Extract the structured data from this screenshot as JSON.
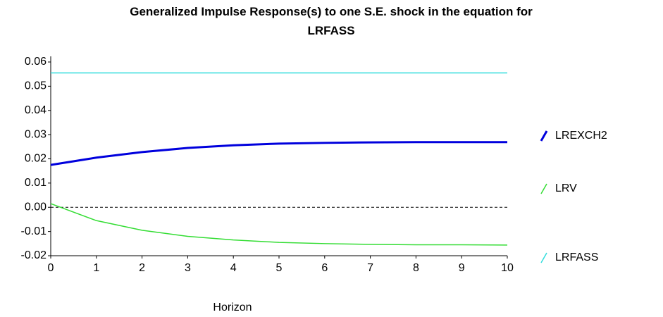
{
  "chart_data": {
    "type": "line",
    "title": "Generalized Impulse Response(s) to one S.E. shock in the equation for LRFASS",
    "x_label": "Horizon",
    "x": [
      0,
      1,
      2,
      3,
      4,
      5,
      6,
      7,
      8,
      9,
      10
    ],
    "series": [
      {
        "name": "LREXCH2",
        "color": "#0000dd",
        "values": [
          0.0175,
          0.0205,
          0.0228,
          0.0245,
          0.0256,
          0.0263,
          0.0266,
          0.0268,
          0.0269,
          0.0269,
          0.0269
        ]
      },
      {
        "name": "LRV",
        "color": "#33dd33",
        "values": [
          0.0015,
          -0.0055,
          -0.0095,
          -0.012,
          -0.0135,
          -0.0145,
          -0.015,
          -0.0153,
          -0.0155,
          -0.0155,
          -0.0156
        ]
      },
      {
        "name": "LRFASS",
        "color": "#33dddd",
        "values": [
          0.0555,
          0.0555,
          0.0555,
          0.0555,
          0.0555,
          0.0555,
          0.0555,
          0.0555,
          0.0555,
          0.0555,
          0.0555
        ]
      }
    ],
    "xlim": [
      0,
      10
    ],
    "xticks": [
      0,
      1,
      2,
      3,
      4,
      5,
      6,
      7,
      8,
      9,
      10
    ],
    "ylim": [
      -0.02,
      0.06
    ],
    "yticks": [
      -0.02,
      -0.01,
      {
        "value": 0,
        "label": "0.00"
      },
      0.01,
      0.02,
      0.03,
      0.04,
      0.05,
      0.06
    ],
    "zero_line": true,
    "legend": "right"
  }
}
